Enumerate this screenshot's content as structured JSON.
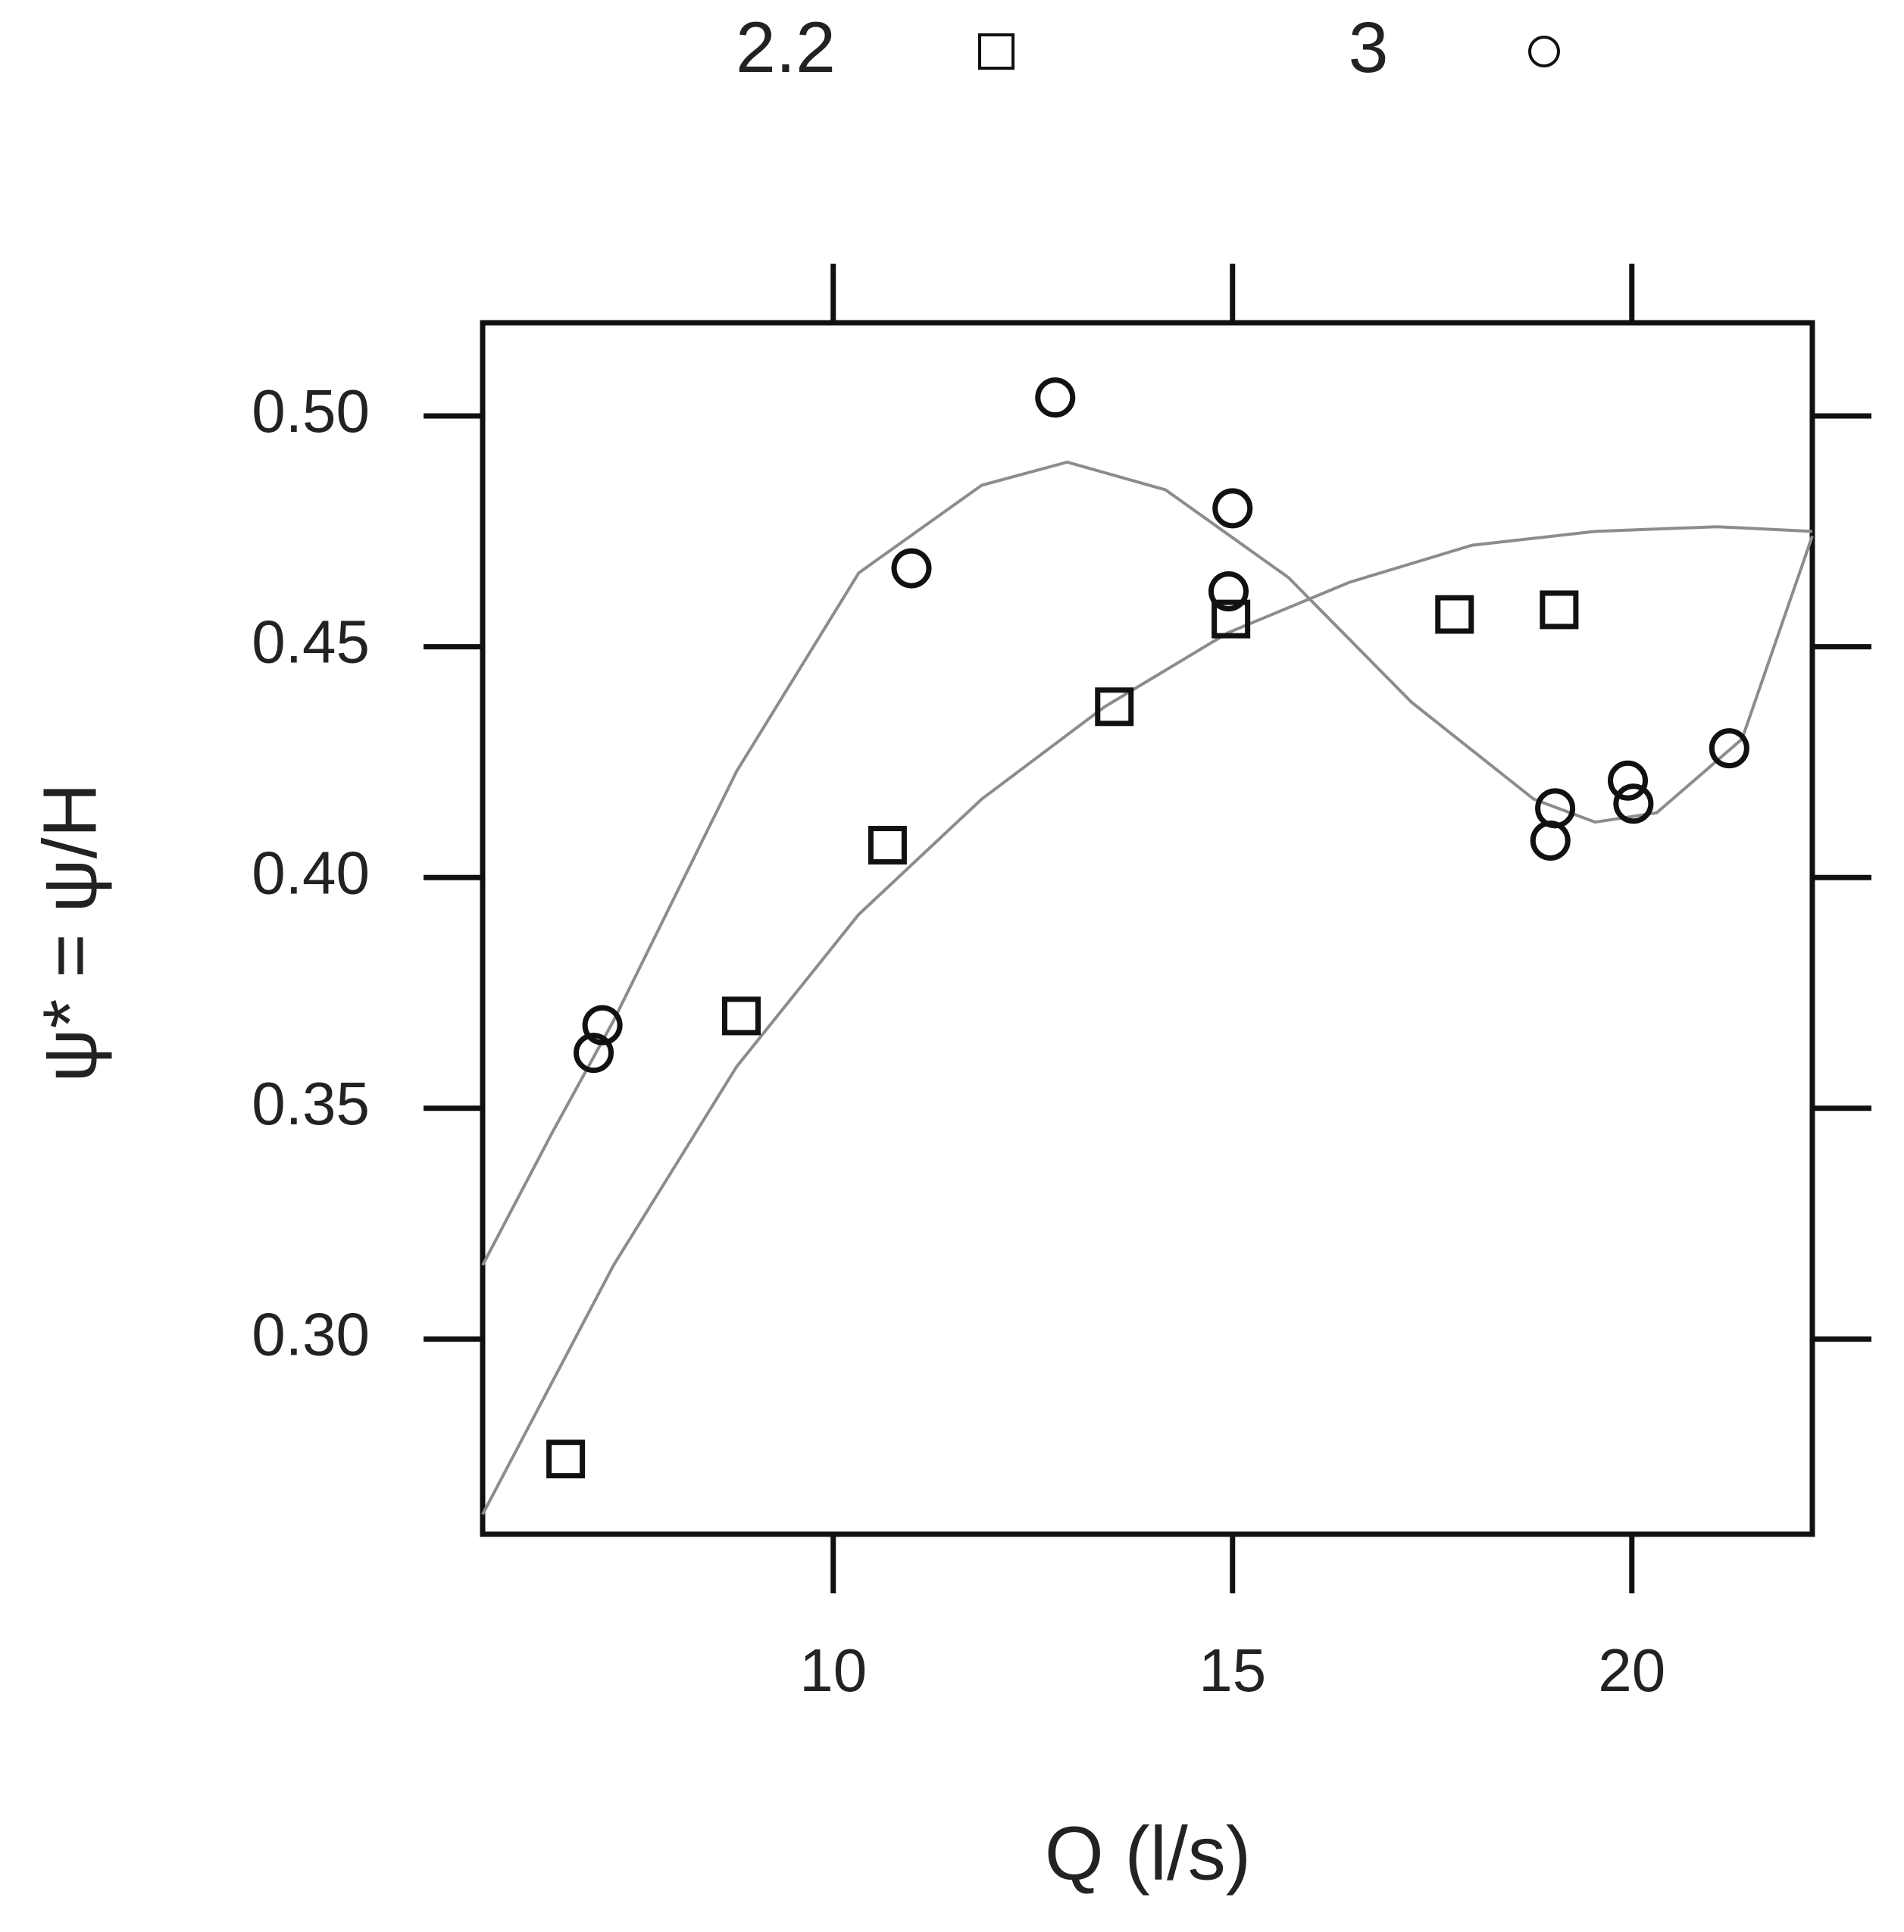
{
  "chart_data": {
    "type": "scatter",
    "xlabel": "Q (l/s)",
    "ylabel": "ψ* = ψ/H",
    "xlim": [
      5.61,
      22.26
    ],
    "ylim": [
      0.2577,
      0.5202
    ],
    "xticks": [
      10,
      15,
      20
    ],
    "yticks": [
      {
        "value": 0.3,
        "label": "0.30"
      },
      {
        "value": 0.35,
        "label": "0.35"
      },
      {
        "value": 0.4,
        "label": "0.40"
      },
      {
        "value": 0.45,
        "label": "0.45"
      },
      {
        "value": 0.5,
        "label": "0.50"
      }
    ],
    "series": [
      {
        "name": "2.2",
        "marker": "square",
        "color": "#111111",
        "x": [
          6.65,
          8.85,
          10.68,
          13.52,
          14.98,
          17.78,
          19.09
        ],
        "values": [
          0.274,
          0.37,
          0.407,
          0.437,
          0.456,
          0.457,
          0.458
        ]
      },
      {
        "name": "3",
        "marker": "circle",
        "color": "#111111",
        "x": [
          7.0,
          7.11,
          10.98,
          12.78,
          15.0,
          14.95,
          18.98,
          19.04,
          19.95,
          20.02,
          21.22
        ],
        "values": [
          0.362,
          0.368,
          0.467,
          0.504,
          0.48,
          0.462,
          0.408,
          0.415,
          0.421,
          0.416,
          0.428
        ]
      }
    ],
    "curves": [
      {
        "color": "#8c8c8c",
        "x": [
          5.61,
          7.25,
          8.79,
          10.32,
          11.86,
          13.4,
          14.94,
          16.47,
          18.0,
          19.54,
          21.07,
          22.26
        ],
        "values": [
          0.262,
          0.316,
          0.359,
          0.392,
          0.417,
          0.437,
          0.453,
          0.464,
          0.472,
          0.475,
          0.476,
          0.475
        ]
      },
      {
        "color": "#8c8c8c",
        "x": [
          5.61,
          6.49,
          7.25,
          8.79,
          10.32,
          11.86,
          12.93,
          14.16,
          15.7,
          17.24,
          18.77,
          19.54,
          20.31,
          21.38,
          22.26
        ],
        "values": [
          0.316,
          0.345,
          0.369,
          0.423,
          0.466,
          0.485,
          0.49,
          0.484,
          0.465,
          0.438,
          0.417,
          0.412,
          0.414,
          0.43,
          0.474
        ]
      }
    ]
  }
}
